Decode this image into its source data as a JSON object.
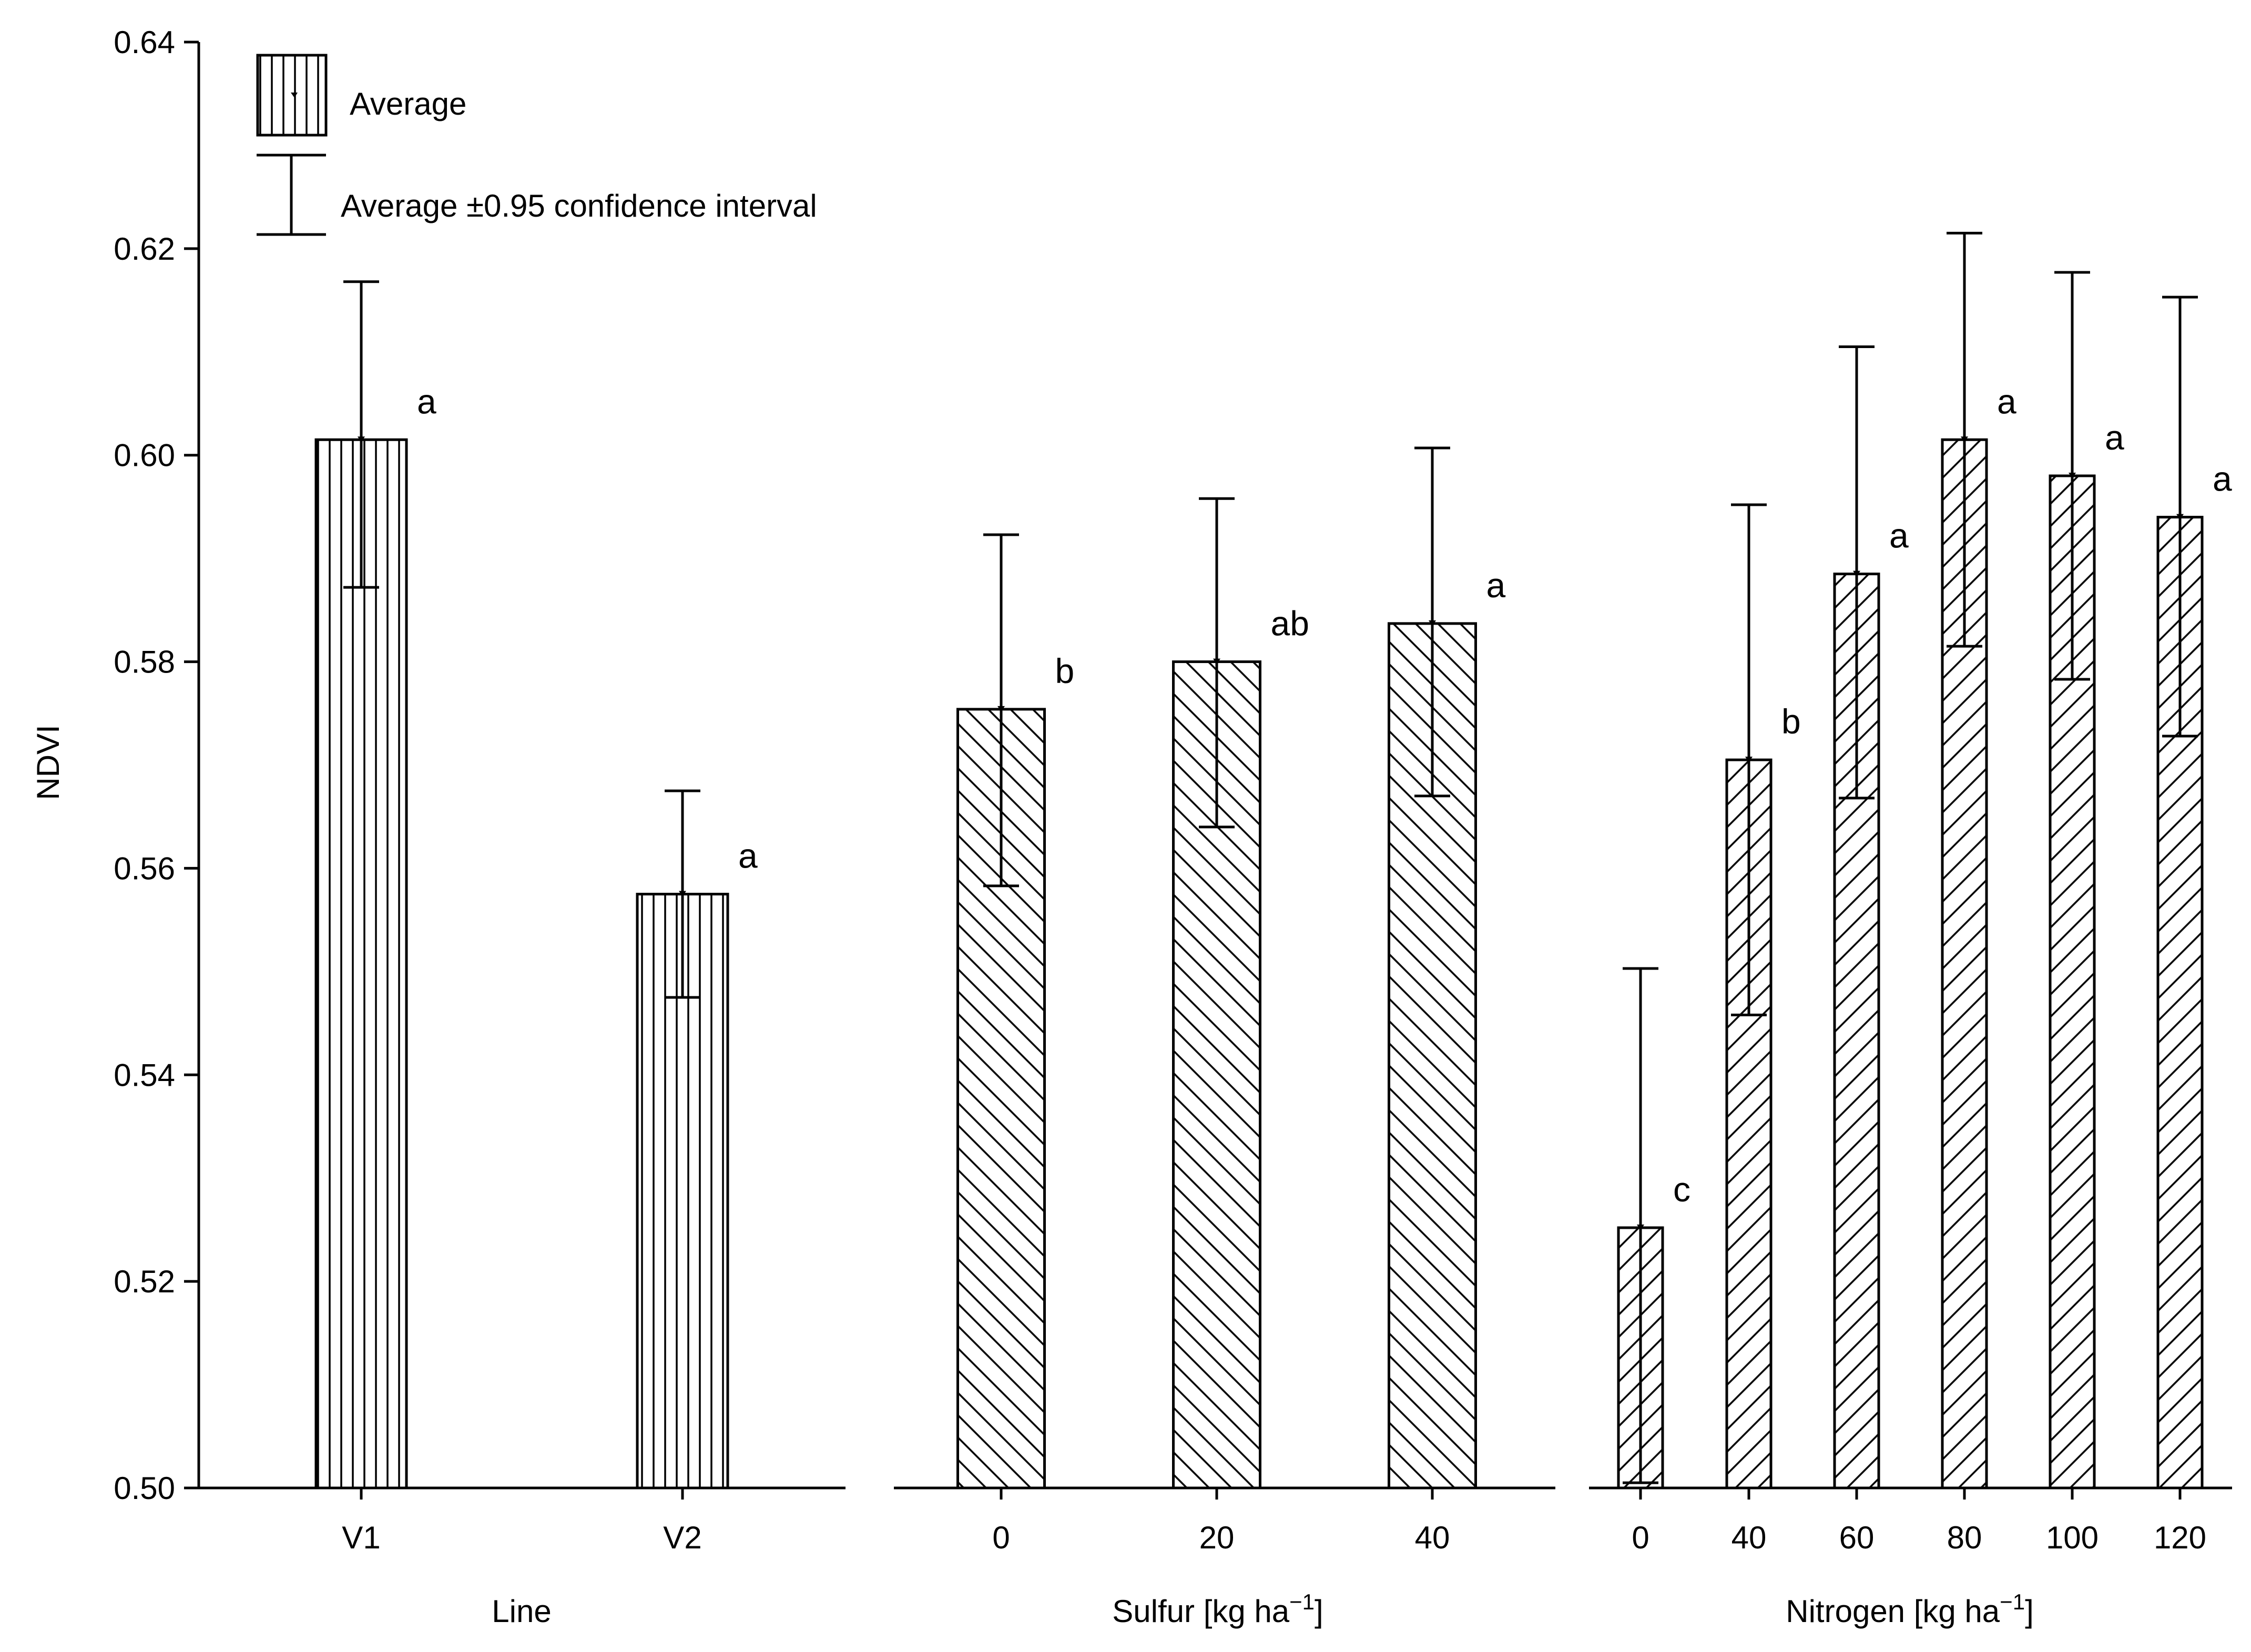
{
  "chart_data": {
    "type": "bar",
    "ylabel": "NDVI",
    "ylim": [
      0.5,
      0.64
    ],
    "yticks": [
      "0.50",
      "0.52",
      "0.54",
      "0.56",
      "0.58",
      "0.60",
      "0.62",
      "0.64"
    ],
    "legend": {
      "average": "Average",
      "ci": "Average ±0.95 confidence interval",
      "position": "top-left"
    },
    "panels": [
      {
        "id": "line",
        "xlabel": "Line",
        "xlabel_sup": "",
        "xlabel_suffix": "",
        "pattern": "vertical",
        "categories": [
          "V1",
          "V2"
        ],
        "values": [
          0.6015,
          0.5575
        ],
        "ci_low": [
          0.5872,
          0.5475
        ],
        "ci_high": [
          0.6168,
          0.5675
        ],
        "letters": [
          "a",
          "a"
        ]
      },
      {
        "id": "sulfur",
        "xlabel": "Sulfur [kg ha",
        "xlabel_sup": "−1",
        "xlabel_suffix": "]",
        "pattern": "backslash",
        "categories": [
          "0",
          "20",
          "40"
        ],
        "values": [
          0.5754,
          0.58,
          0.5837
        ],
        "ci_low": [
          0.5583,
          0.564,
          0.567
        ],
        "ci_high": [
          0.5923,
          0.5958,
          0.6007
        ],
        "letters": [
          "b",
          "ab",
          "a"
        ]
      },
      {
        "id": "nitrogen",
        "xlabel": "Nitrogen [kg ha",
        "xlabel_sup": "−1",
        "xlabel_suffix": "]",
        "pattern": "slash",
        "categories": [
          "0",
          "40",
          "60",
          "80",
          "100",
          "120"
        ],
        "values": [
          0.5252,
          0.5705,
          0.5885,
          0.6015,
          0.598,
          0.594
        ],
        "ci_low": [
          0.5005,
          0.5458,
          0.5668,
          0.5815,
          0.5783,
          0.5728
        ],
        "ci_high": [
          0.5503,
          0.5952,
          0.6105,
          0.6215,
          0.6177,
          0.6153
        ],
        "letters": [
          "c",
          "b",
          "a",
          "a",
          "a",
          "a"
        ]
      }
    ]
  }
}
